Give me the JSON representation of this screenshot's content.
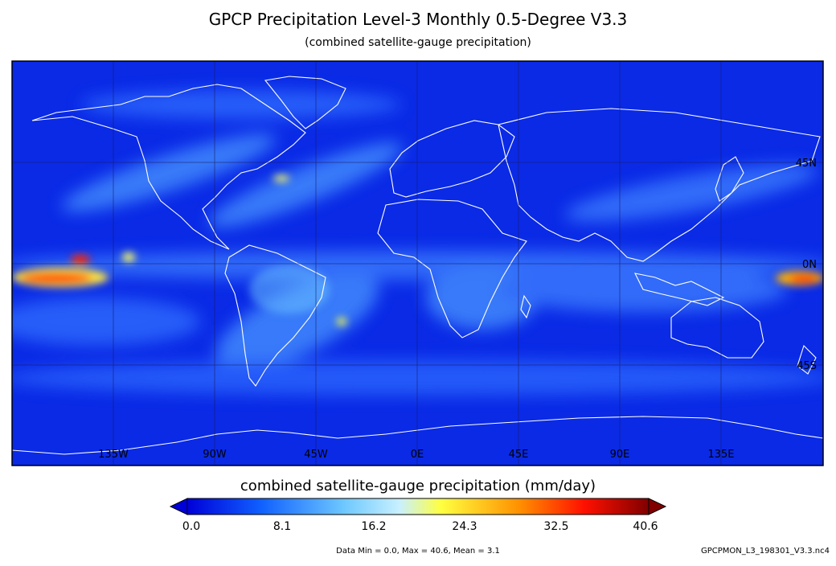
{
  "title": "GPCP Precipitation Level-3 Monthly 0.5-Degree V3.3",
  "subtitle": "(combined satellite-gauge precipitation)",
  "map": {
    "lon_labels": [
      "135W",
      "90W",
      "45W",
      "0E",
      "45E",
      "90E",
      "135E"
    ],
    "lat_labels": [
      "45N",
      "0N",
      "45S"
    ],
    "background_color": "#0a2ae6",
    "coastline_color": "#ffffff"
  },
  "colorbar": {
    "title": "combined satellite-gauge precipitation (mm/day)",
    "ticks": [
      "0.0",
      "8.1",
      "16.2",
      "24.3",
      "32.5",
      "40.6"
    ],
    "min": 0.0,
    "max": 40.6,
    "colors": [
      "#0000d8",
      "#1060ff",
      "#6ec8ff",
      "#c8f0ff",
      "#ffff40",
      "#ff9000",
      "#ff1000",
      "#800000"
    ]
  },
  "stats": "Data Min = 0.0, Max = 40.6, Mean = 3.1",
  "filename": "GPCPMON_L3_198301_V3.3.nc4"
}
